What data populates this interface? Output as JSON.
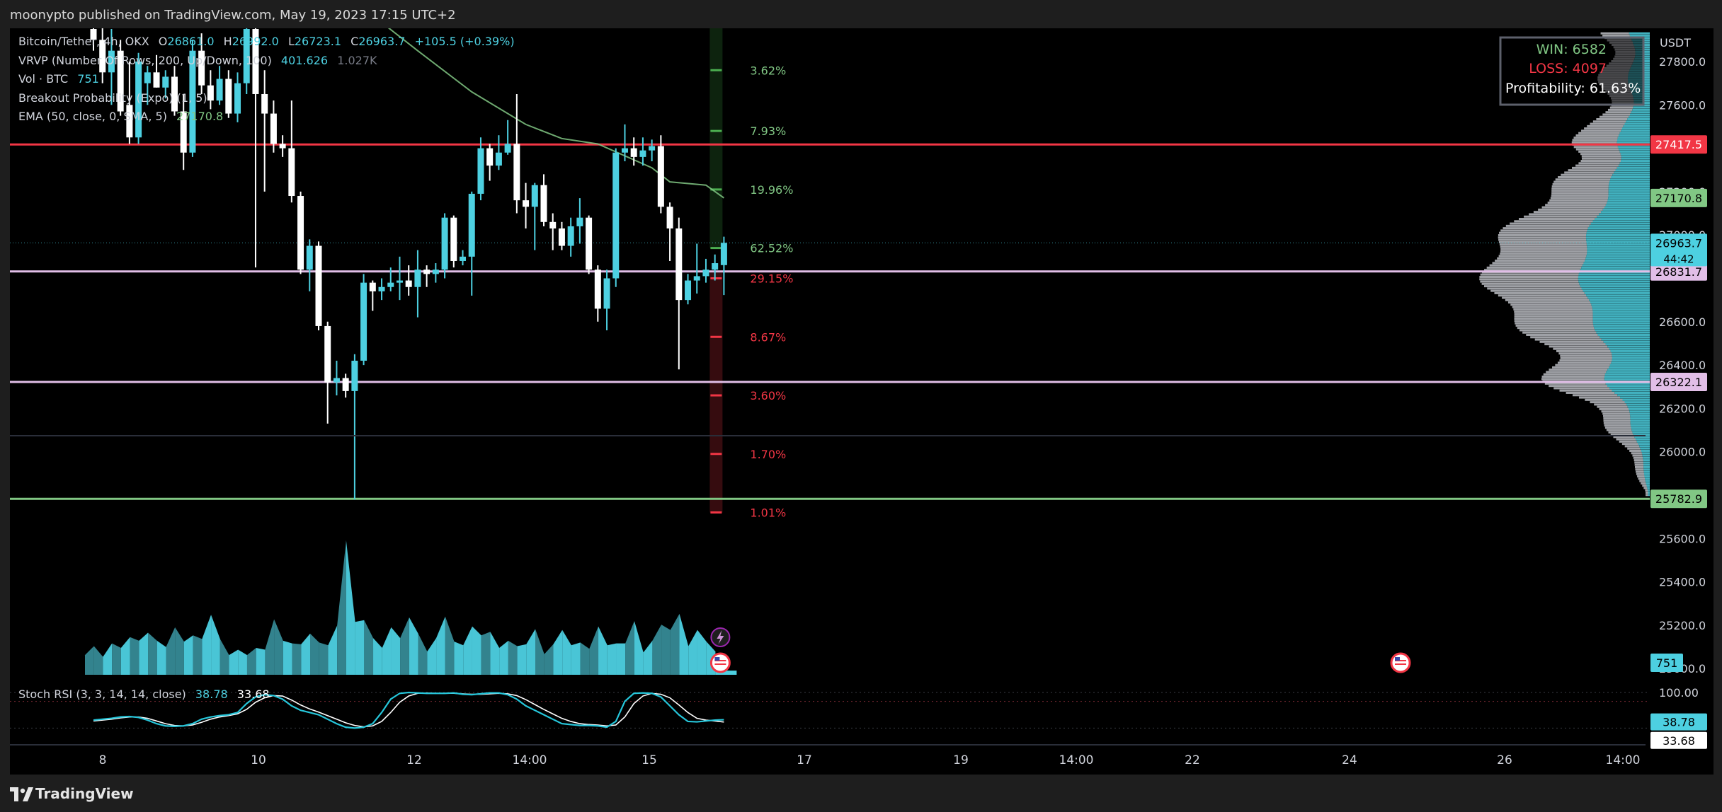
{
  "header": {
    "publish_line": "moonypto published on TradingView.com, May 19, 2023 17:15 UTC+2"
  },
  "footer": {
    "brand": "TradingView"
  },
  "legend": {
    "symbol_line": {
      "title": "Bitcoin/Tether, 4h, OKX",
      "o_label": "O",
      "o": "26861.0",
      "h_label": "H",
      "h": "26992.0",
      "l_label": "L",
      "l": "26723.1",
      "c_label": "C",
      "c": "26963.7",
      "change": "+105.5 (+0.39%)"
    },
    "vrvp": {
      "label": "VRVP (Number Of Rows, 200, Up/Down, 100)",
      "v1": "401.626",
      "v2": "1.027K"
    },
    "vol": {
      "label": "Vol · BTC",
      "value": "751"
    },
    "breakout": {
      "label": "Breakout Probability (Expo) (1, 5)"
    },
    "ema": {
      "label": "EMA (50, close, 0, SMA, 5)",
      "value": "27170.8"
    },
    "stoch": {
      "label": "Stoch RSI (3, 3, 14, 14, close)",
      "k": "38.78",
      "d": "33.68"
    }
  },
  "stats_box": {
    "win": "WIN: 6582",
    "loss": "LOSS: 4097",
    "profitability": "Profitability: 61.63%"
  },
  "price_axis": {
    "currency": "USDT",
    "ticks": [
      27800,
      27600,
      27200,
      27000,
      26600,
      26400,
      26200,
      26000,
      25600,
      25400,
      25200,
      25000
    ],
    "tick_labels": [
      "27800.0",
      "27600.0",
      "27200.0",
      "27000.0",
      "26600.0",
      "26400.0",
      "26200.0",
      "26000.0",
      "25600.0",
      "25400.0",
      "25200.0",
      "25000.0"
    ]
  },
  "time_axis": {
    "labels": [
      "8",
      "10",
      "12",
      "14:00",
      "15",
      "17",
      "19",
      "14:00",
      "22",
      "24",
      "26",
      "14:00"
    ]
  },
  "colors": {
    "bull": "#4dd0e1",
    "bear": "#ffffff",
    "red": "#f23645",
    "green": "#81c784",
    "lavender": "#e1bee7",
    "ema": "#81c784",
    "stoch_k": "#26c6da",
    "stoch_d": "#ffffff"
  },
  "chart_data": {
    "type": "candlestick",
    "symbol": "Bitcoin/Tether",
    "interval": "4h",
    "exchange": "OKX",
    "ylim": [
      24900,
      27900
    ],
    "last_price": 26963.7,
    "countdown": "44:42",
    "candles": [
      {
        "o": 27950,
        "h": 28050,
        "l": 27850,
        "c": 27900
      },
      {
        "o": 27900,
        "h": 28000,
        "l": 27700,
        "c": 27750
      },
      {
        "o": 27750,
        "h": 27950,
        "l": 27600,
        "c": 27850
      },
      {
        "o": 27850,
        "h": 27900,
        "l": 27550,
        "c": 27570
      },
      {
        "o": 27600,
        "h": 27800,
        "l": 27420,
        "c": 27450
      },
      {
        "o": 27450,
        "h": 27840,
        "l": 27420,
        "c": 27800
      },
      {
        "o": 27700,
        "h": 27780,
        "l": 27600,
        "c": 27750
      },
      {
        "o": 27750,
        "h": 27830,
        "l": 27680,
        "c": 27680
      },
      {
        "o": 27680,
        "h": 27760,
        "l": 27630,
        "c": 27730
      },
      {
        "o": 27730,
        "h": 27780,
        "l": 27550,
        "c": 27570
      },
      {
        "o": 27570,
        "h": 27650,
        "l": 27300,
        "c": 27380
      },
      {
        "o": 27380,
        "h": 27900,
        "l": 27360,
        "c": 27850
      },
      {
        "o": 27850,
        "h": 27930,
        "l": 27650,
        "c": 27690
      },
      {
        "o": 27690,
        "h": 27760,
        "l": 27580,
        "c": 27620
      },
      {
        "o": 27620,
        "h": 27780,
        "l": 27600,
        "c": 27720
      },
      {
        "o": 27720,
        "h": 27760,
        "l": 27540,
        "c": 27560
      },
      {
        "o": 27560,
        "h": 27750,
        "l": 27520,
        "c": 27700
      },
      {
        "o": 27700,
        "h": 28000,
        "l": 27650,
        "c": 27950
      },
      {
        "o": 27950,
        "h": 27980,
        "l": 26850,
        "c": 27650
      },
      {
        "o": 27650,
        "h": 27760,
        "l": 27200,
        "c": 27560
      },
      {
        "o": 27560,
        "h": 27620,
        "l": 27380,
        "c": 27420
      },
      {
        "o": 27420,
        "h": 27460,
        "l": 27360,
        "c": 27400
      },
      {
        "o": 27400,
        "h": 27620,
        "l": 27150,
        "c": 27180
      },
      {
        "o": 27180,
        "h": 27200,
        "l": 26820,
        "c": 26840
      },
      {
        "o": 26840,
        "h": 26980,
        "l": 26740,
        "c": 26950
      },
      {
        "o": 26950,
        "h": 26970,
        "l": 26560,
        "c": 26580
      },
      {
        "o": 26580,
        "h": 26600,
        "l": 26130,
        "c": 26320
      },
      {
        "o": 26320,
        "h": 26420,
        "l": 26260,
        "c": 26340
      },
      {
        "o": 26340,
        "h": 26360,
        "l": 26250,
        "c": 26280
      },
      {
        "o": 26280,
        "h": 26450,
        "l": 25780,
        "c": 26420
      },
      {
        "o": 26420,
        "h": 26820,
        "l": 26400,
        "c": 26780
      },
      {
        "o": 26780,
        "h": 26790,
        "l": 26650,
        "c": 26740
      },
      {
        "o": 26740,
        "h": 26800,
        "l": 26700,
        "c": 26760
      },
      {
        "o": 26760,
        "h": 26850,
        "l": 26740,
        "c": 26780
      },
      {
        "o": 26780,
        "h": 26900,
        "l": 26700,
        "c": 26790
      },
      {
        "o": 26790,
        "h": 26860,
        "l": 26720,
        "c": 26760
      },
      {
        "o": 26760,
        "h": 26930,
        "l": 26620,
        "c": 26840
      },
      {
        "o": 26840,
        "h": 26860,
        "l": 26760,
        "c": 26820
      },
      {
        "o": 26820,
        "h": 26870,
        "l": 26780,
        "c": 26840
      },
      {
        "o": 26840,
        "h": 27100,
        "l": 26800,
        "c": 27080
      },
      {
        "o": 27080,
        "h": 27090,
        "l": 26850,
        "c": 26880
      },
      {
        "o": 26880,
        "h": 26930,
        "l": 26860,
        "c": 26900
      },
      {
        "o": 26900,
        "h": 27200,
        "l": 26720,
        "c": 27190
      },
      {
        "o": 27190,
        "h": 27450,
        "l": 27160,
        "c": 27400
      },
      {
        "o": 27400,
        "h": 27420,
        "l": 27250,
        "c": 27320
      },
      {
        "o": 27320,
        "h": 27460,
        "l": 27300,
        "c": 27380
      },
      {
        "o": 27380,
        "h": 27530,
        "l": 27370,
        "c": 27420
      },
      {
        "o": 27420,
        "h": 27650,
        "l": 27100,
        "c": 27160
      },
      {
        "o": 27160,
        "h": 27240,
        "l": 27030,
        "c": 27130
      },
      {
        "o": 27130,
        "h": 27240,
        "l": 26930,
        "c": 27230
      },
      {
        "o": 27230,
        "h": 27280,
        "l": 27040,
        "c": 27060
      },
      {
        "o": 27060,
        "h": 27100,
        "l": 26930,
        "c": 27030
      },
      {
        "o": 27030,
        "h": 27060,
        "l": 26930,
        "c": 26950
      },
      {
        "o": 26950,
        "h": 27080,
        "l": 26900,
        "c": 27040
      },
      {
        "o": 27040,
        "h": 27170,
        "l": 26960,
        "c": 27080
      },
      {
        "o": 27080,
        "h": 27090,
        "l": 26820,
        "c": 26840
      },
      {
        "o": 26840,
        "h": 26860,
        "l": 26600,
        "c": 26660
      },
      {
        "o": 26660,
        "h": 26840,
        "l": 26560,
        "c": 26800
      },
      {
        "o": 26800,
        "h": 27400,
        "l": 26760,
        "c": 27380
      },
      {
        "o": 27380,
        "h": 27510,
        "l": 27340,
        "c": 27400
      },
      {
        "o": 27400,
        "h": 27450,
        "l": 27320,
        "c": 27360
      },
      {
        "o": 27360,
        "h": 27450,
        "l": 27320,
        "c": 27390
      },
      {
        "o": 27390,
        "h": 27440,
        "l": 27340,
        "c": 27410
      },
      {
        "o": 27410,
        "h": 27460,
        "l": 27100,
        "c": 27130
      },
      {
        "o": 27130,
        "h": 27150,
        "l": 26880,
        "c": 27030
      },
      {
        "o": 27030,
        "h": 27080,
        "l": 26380,
        "c": 26700
      },
      {
        "o": 26700,
        "h": 26820,
        "l": 26680,
        "c": 26790
      },
      {
        "o": 26790,
        "h": 26960,
        "l": 26730,
        "c": 26810
      },
      {
        "o": 26810,
        "h": 26890,
        "l": 26780,
        "c": 26840
      },
      {
        "o": 26840,
        "h": 26910,
        "l": 26790,
        "c": 26870
      },
      {
        "o": 26861,
        "h": 26992,
        "l": 26723.1,
        "c": 26963.7
      }
    ],
    "ema": {
      "name": "EMA (50, close, 0, SMA, 5)",
      "points": [
        [
          32,
          27980
        ],
        [
          36,
          27850
        ],
        [
          42,
          27660
        ],
        [
          48,
          27510
        ],
        [
          52,
          27445
        ],
        [
          56,
          27420
        ],
        [
          62,
          27310
        ],
        [
          64,
          27245
        ],
        [
          68,
          27230
        ],
        [
          70,
          27170.8
        ]
      ]
    },
    "horizontal_levels": [
      {
        "price": 27417.5,
        "label": "27417.5",
        "color": "red"
      },
      {
        "price": 27170.8,
        "label": "27170.8",
        "color": "green"
      },
      {
        "price": 26831.7,
        "label": "26831.7",
        "color": "lavender"
      },
      {
        "price": 26322.1,
        "label": "26322.1",
        "color": "lavender"
      },
      {
        "price": 25782.9,
        "label": "25782.9",
        "color": "green"
      }
    ],
    "breakout_probability": {
      "up": [
        {
          "price": 27760,
          "label": "3.62%"
        },
        {
          "price": 27480,
          "label": "7.93%"
        },
        {
          "price": 27210,
          "label": "19.96%"
        },
        {
          "price": 26940,
          "label": "62.52%"
        }
      ],
      "down": [
        {
          "price": 26800,
          "label": "29.15%"
        },
        {
          "price": 26530,
          "label": "8.67%"
        },
        {
          "price": 26260,
          "label": "3.60%"
        },
        {
          "price": 25990,
          "label": "1.70%"
        },
        {
          "price": 25720,
          "label": "1.01%"
        }
      ]
    },
    "volume": {
      "last": 751,
      "values": [
        220,
        320,
        200,
        350,
        300,
        420,
        380,
        470,
        380,
        310,
        530,
        370,
        440,
        400,
        670,
        400,
        220,
        280,
        220,
        300,
        280,
        620,
        380,
        350,
        340,
        460,
        360,
        330,
        550,
        1500,
        590,
        610,
        410,
        300,
        530,
        410,
        640,
        460,
        260,
        410,
        650,
        370,
        330,
        540,
        440,
        480,
        300,
        380,
        320,
        340,
        510,
        230,
        340,
        500,
        330,
        360,
        290,
        540,
        330,
        350,
        350,
        600,
        250,
        380,
        560,
        500,
        680,
        320,
        500,
        370,
        260
      ],
      "colors_up": [
        false,
        false,
        true,
        false,
        true,
        false,
        true,
        false,
        true,
        false,
        false,
        true,
        false,
        true,
        true,
        false,
        true,
        true,
        false,
        true,
        false,
        false,
        true,
        false,
        true,
        false,
        false,
        true,
        false,
        true,
        true,
        false,
        true,
        true,
        true,
        false,
        true,
        false,
        true,
        true,
        false,
        true,
        true,
        true,
        false,
        true,
        true,
        false,
        true,
        true,
        false,
        false,
        true,
        true,
        true,
        false,
        false,
        true,
        true,
        true,
        false,
        true,
        true,
        false,
        false,
        false,
        true,
        true,
        true,
        true,
        true
      ]
    },
    "stoch_rsi": {
      "ylim": [
        0,
        100
      ],
      "levels": [
        100,
        80,
        20
      ],
      "k_last": 38.78,
      "d_last": 33.68,
      "k": [
        38,
        40,
        42,
        45,
        46,
        44,
        38,
        30,
        25,
        24,
        25,
        30,
        40,
        45,
        48,
        50,
        55,
        75,
        90,
        95,
        93,
        85,
        70,
        60,
        55,
        50,
        40,
        30,
        22,
        20,
        22,
        30,
        55,
        85,
        98,
        100,
        99,
        98,
        98,
        98,
        99,
        96,
        95,
        97,
        99,
        99,
        95,
        85,
        70,
        60,
        50,
        40,
        30,
        28,
        26,
        26,
        25,
        22,
        35,
        80,
        98,
        99,
        98,
        90,
        70,
        50,
        35,
        34,
        36,
        38,
        38.78
      ],
      "d": [
        36,
        38,
        40,
        43,
        45,
        45,
        42,
        36,
        30,
        26,
        25,
        27,
        33,
        40,
        45,
        48,
        52,
        62,
        78,
        88,
        93,
        92,
        83,
        72,
        63,
        56,
        48,
        40,
        32,
        26,
        23,
        25,
        35,
        55,
        78,
        92,
        98,
        99,
        98,
        98,
        98,
        97,
        96,
        96,
        97,
        98,
        97,
        93,
        84,
        73,
        62,
        52,
        42,
        35,
        30,
        28,
        27,
        25,
        27,
        45,
        75,
        92,
        98,
        96,
        88,
        72,
        55,
        42,
        38,
        36,
        33.68
      ]
    }
  }
}
